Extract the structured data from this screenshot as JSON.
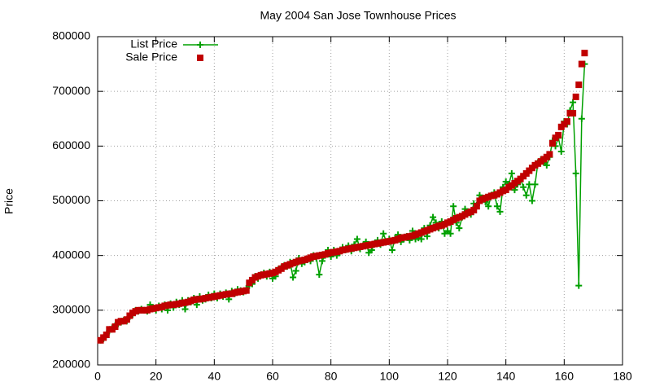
{
  "chart_data": {
    "type": "line",
    "title": "May 2004 San Jose Townhouse Prices",
    "y_label": "Price",
    "x": [
      1,
      2,
      3,
      4,
      5,
      6,
      7,
      8,
      9,
      10,
      11,
      12,
      13,
      14,
      15,
      16,
      17,
      18,
      19,
      20,
      21,
      22,
      23,
      24,
      25,
      26,
      27,
      28,
      29,
      30,
      31,
      32,
      33,
      34,
      35,
      36,
      37,
      38,
      39,
      40,
      41,
      42,
      43,
      44,
      45,
      46,
      47,
      48,
      49,
      50,
      51,
      52,
      53,
      54,
      55,
      56,
      57,
      58,
      59,
      60,
      61,
      62,
      63,
      64,
      65,
      66,
      67,
      68,
      69,
      70,
      71,
      72,
      73,
      74,
      75,
      76,
      77,
      78,
      79,
      80,
      81,
      82,
      83,
      84,
      85,
      86,
      87,
      88,
      89,
      90,
      91,
      92,
      93,
      94,
      95,
      96,
      97,
      98,
      99,
      100,
      101,
      102,
      103,
      104,
      105,
      106,
      107,
      108,
      109,
      110,
      111,
      112,
      113,
      114,
      115,
      116,
      117,
      118,
      119,
      120,
      121,
      122,
      123,
      124,
      125,
      126,
      127,
      128,
      129,
      130,
      131,
      132,
      133,
      134,
      135,
      136,
      137,
      138,
      139,
      140,
      141,
      142,
      143,
      144,
      145,
      146,
      147,
      148,
      149,
      150,
      151,
      152,
      153,
      154,
      155,
      156,
      157,
      158,
      159,
      160,
      161,
      162,
      163,
      164,
      165,
      166,
      167
    ],
    "series": [
      {
        "name": "List Price",
        "color": "#00a000",
        "style": "linespoints",
        "values": [
          245000,
          248000,
          255000,
          262000,
          268000,
          272000,
          275000,
          278000,
          282000,
          280000,
          288000,
          292000,
          300000,
          298000,
          302000,
          300000,
          298000,
          310000,
          305000,
          300000,
          308000,
          302000,
          310000,
          300000,
          312000,
          305000,
          315000,
          310000,
          318000,
          302000,
          318000,
          315000,
          322000,
          310000,
          325000,
          318000,
          320000,
          328000,
          322000,
          330000,
          322000,
          330000,
          325000,
          332000,
          320000,
          335000,
          330000,
          338000,
          336000,
          333000,
          340000,
          345000,
          348000,
          362000,
          358000,
          365000,
          368000,
          362000,
          370000,
          358000,
          362000,
          375000,
          378000,
          382000,
          380000,
          388000,
          360000,
          372000,
          395000,
          385000,
          388000,
          392000,
          390000,
          400000,
          395000,
          365000,
          390000,
          400000,
          410000,
          398000,
          410000,
          400000,
          405000,
          415000,
          410000,
          418000,
          408000,
          420000,
          430000,
          412000,
          418000,
          425000,
          405000,
          410000,
          422000,
          428000,
          420000,
          440000,
          425000,
          430000,
          410000,
          432000,
          438000,
          425000,
          430000,
          435000,
          428000,
          445000,
          430000,
          432000,
          430000,
          450000,
          435000,
          455000,
          470000,
          460000,
          450000,
          462000,
          440000,
          445000,
          440000,
          490000,
          460000,
          450000,
          470000,
          485000,
          480000,
          475000,
          495000,
          492000,
          510000,
          505000,
          498000,
          490000,
          510000,
          515000,
          490000,
          480000,
          525000,
          535000,
          530000,
          550000,
          520000,
          530000,
          540000,
          525000,
          510000,
          530000,
          500000,
          530000,
          570000,
          575000,
          570000,
          565000,
          580000,
          610000,
          600000,
          615000,
          590000,
          645000,
          640000,
          665000,
          680000,
          550000,
          345000,
          650000,
          750000
        ]
      },
      {
        "name": "Sale Price",
        "color": "#c00000",
        "style": "points",
        "values": [
          245000,
          250000,
          255000,
          265000,
          265000,
          270000,
          278000,
          280000,
          280000,
          283000,
          290000,
          295000,
          298000,
          300000,
          300000,
          300000,
          300000,
          302000,
          303000,
          304000,
          305000,
          306000,
          308000,
          309000,
          310000,
          310000,
          311000,
          312000,
          313000,
          314000,
          315000,
          317000,
          319000,
          320000,
          320000,
          321000,
          322000,
          323000,
          324000,
          325000,
          326000,
          327000,
          328000,
          329000,
          330000,
          330000,
          332000,
          333000,
          334000,
          335000,
          336000,
          350000,
          355000,
          360000,
          362000,
          364000,
          365000,
          366000,
          367000,
          368000,
          370000,
          373000,
          376000,
          380000,
          382000,
          384000,
          386000,
          388000,
          390000,
          391000,
          392000,
          394000,
          396000,
          398000,
          399000,
          400000,
          401000,
          402000,
          404000,
          405000,
          406000,
          407000,
          408000,
          410000,
          411000,
          412000,
          413000,
          414000,
          415000,
          416000,
          417000,
          418000,
          419000,
          420000,
          421000,
          422000,
          423000,
          424000,
          425000,
          426000,
          427000,
          428000,
          430000,
          432000,
          433000,
          434000,
          435000,
          436000,
          438000,
          440000,
          442000,
          444000,
          446000,
          448000,
          450000,
          452000,
          454000,
          455000,
          457000,
          460000,
          462000,
          465000,
          468000,
          470000,
          472000,
          475000,
          478000,
          480000,
          483000,
          490000,
          500000,
          503000,
          505000,
          507000,
          509000,
          510000,
          512000,
          515000,
          518000,
          520000,
          525000,
          528000,
          532000,
          536000,
          540000,
          545000,
          550000,
          555000,
          560000,
          565000,
          568000,
          572000,
          576000,
          580000,
          585000,
          605000,
          615000,
          620000,
          635000,
          640000,
          645000,
          660000,
          660000,
          690000,
          712000,
          750000,
          770000
        ]
      }
    ],
    "xlim": [
      0,
      180
    ],
    "xticks": [
      0,
      20,
      40,
      60,
      80,
      100,
      120,
      140,
      160,
      180
    ],
    "ylim": [
      200000,
      800000
    ],
    "yticks": [
      200000,
      300000,
      400000,
      500000,
      600000,
      700000,
      800000
    ],
    "grid": true,
    "legend": "top-left"
  }
}
